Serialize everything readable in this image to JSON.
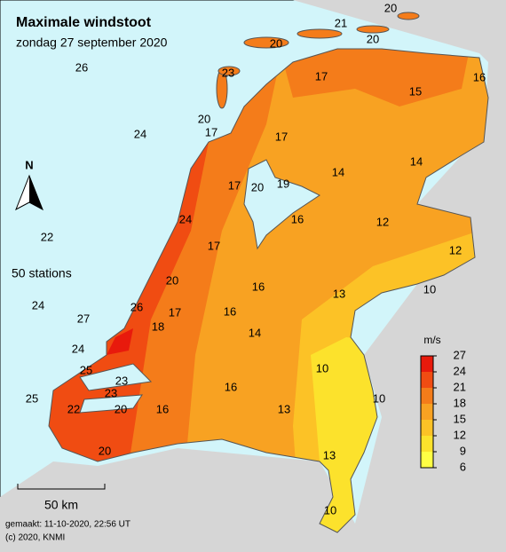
{
  "header": {
    "title": "Maximale windstoot",
    "subtitle": "zondag 27 september 2020"
  },
  "stations": [
    20,
    21,
    20,
    20,
    26,
    17,
    23,
    15,
    16,
    20,
    17,
    24,
    17,
    14,
    14,
    17,
    20,
    19,
    24,
    16,
    12,
    22,
    17,
    12,
    20,
    16,
    13,
    10,
    24,
    26,
    17,
    16,
    27,
    18,
    14,
    24,
    25,
    10,
    23,
    23,
    16,
    25,
    10,
    22,
    20,
    16,
    13,
    20,
    13,
    10
  ],
  "station_count": "50 stations",
  "north": "N",
  "scale_bar": "50 km",
  "legend": {
    "unit": "m/s",
    "ticks": [
      27,
      24,
      21,
      18,
      15,
      12,
      9,
      6
    ],
    "colors": [
      "#e81a0c",
      "#f04c12",
      "#f47c1a",
      "#f8a222",
      "#fcc226",
      "#fce22c",
      "#ffff44"
    ]
  },
  "footer": {
    "made": "gemaakt: 11-10-2020, 22:56 UT",
    "copyright": "(c) 2020, KNMI"
  }
}
